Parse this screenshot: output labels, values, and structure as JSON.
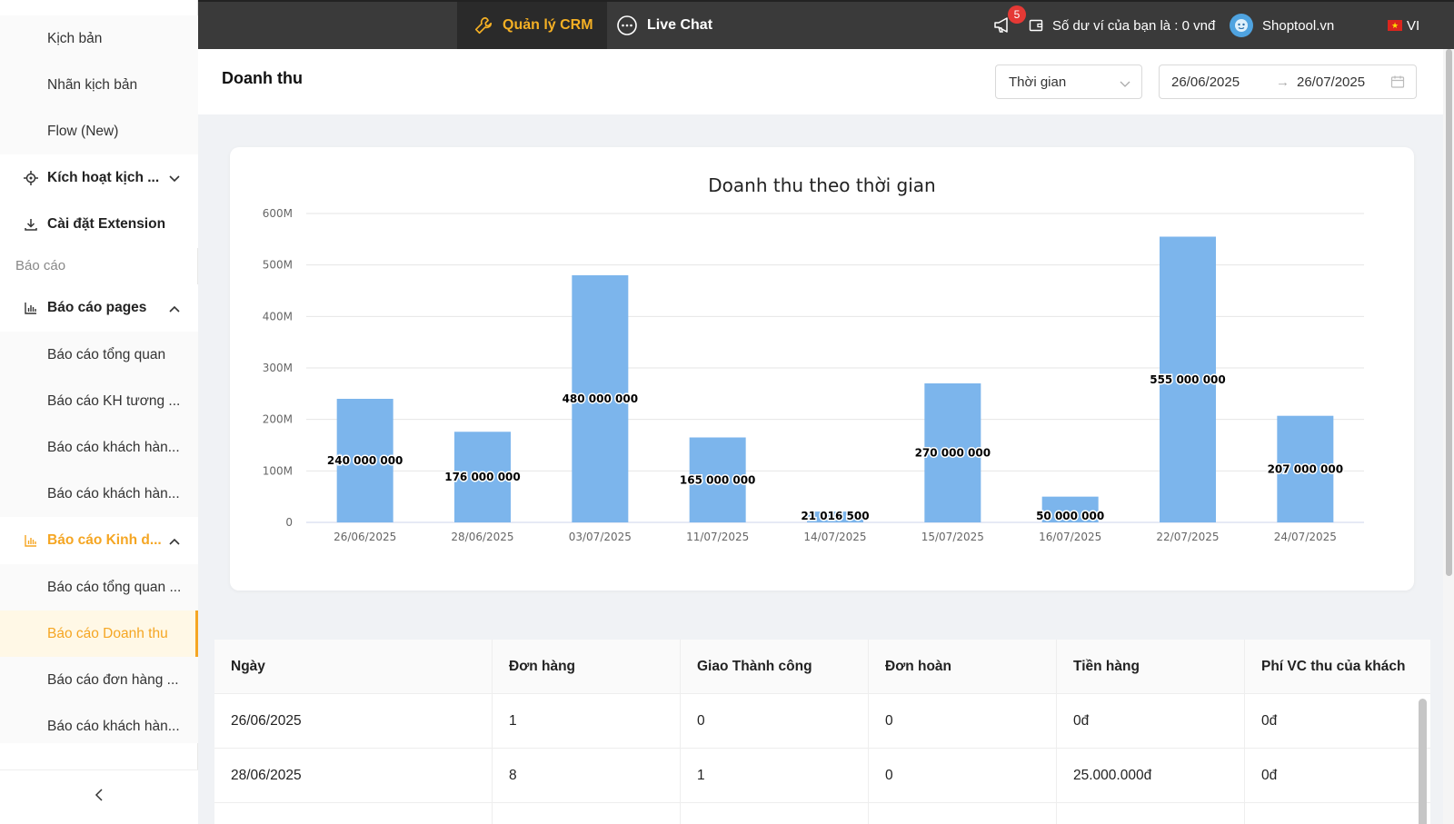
{
  "sidebar": {
    "items": [
      {
        "label": "Kịch bản"
      },
      {
        "label": "Nhãn kịch bản"
      },
      {
        "label": "Flow (New)"
      },
      {
        "label": "Kích hoạt kịch ..."
      },
      {
        "label": "Cài đặt Extension"
      },
      {
        "label": "Báo cáo pages"
      },
      {
        "label": "Báo cáo tổng quan"
      },
      {
        "label": "Báo cáo KH tương ..."
      },
      {
        "label": "Báo cáo khách hàn..."
      },
      {
        "label": "Báo cáo khách hàn..."
      },
      {
        "label": "Báo cáo Kinh d..."
      },
      {
        "label": "Báo cáo tổng quan ..."
      },
      {
        "label": "Báo cáo Doanh thu"
      },
      {
        "label": "Báo cáo đơn hàng ..."
      },
      {
        "label": "Báo cáo khách hàn..."
      }
    ],
    "group_label": "Báo cáo"
  },
  "topbar": {
    "crm_label": "Quản lý CRM",
    "chat_label": "Live Chat",
    "notification_count": "5",
    "wallet_text": "Số dư ví của bạn là :  0 vnđ",
    "user_name": "Shoptool.vn",
    "language": "VI"
  },
  "header": {
    "title": "Doanh thu",
    "time_select": "Thời gian",
    "date_from": "26/06/2025",
    "date_to": "26/07/2025"
  },
  "chart_data": {
    "type": "bar",
    "title": "Doanh thu theo thời gian",
    "categories": [
      "26/06/2025",
      "28/06/2025",
      "03/07/2025",
      "11/07/2025",
      "14/07/2025",
      "15/07/2025",
      "16/07/2025",
      "22/07/2025",
      "24/07/2025"
    ],
    "values": [
      240000000,
      176000000,
      480000000,
      165000000,
      21016500,
      270000000,
      50000000,
      555000000,
      207000000
    ],
    "value_labels": [
      "240 000 000",
      "176 000 000",
      "480 000 000",
      "165 000 000",
      "21 016 500",
      "270 000 000",
      "50 000 000",
      "555 000 000",
      "207 000 000"
    ],
    "y_ticks": [
      "0",
      "100M",
      "200M",
      "300M",
      "400M",
      "500M",
      "600M"
    ],
    "ylim": [
      0,
      600000000
    ],
    "bar_color": "#7cb5ec",
    "grid": true
  },
  "table": {
    "headers": [
      "Ngày",
      "Đơn hàng",
      "Giao Thành công",
      "Đơn hoàn",
      "Tiền hàng",
      "Phí VC thu của khách"
    ],
    "rows": [
      [
        "26/06/2025",
        "1",
        "0",
        "0",
        "0đ",
        "0đ"
      ],
      [
        "28/06/2025",
        "8",
        "1",
        "0",
        "25.000.000đ",
        "0đ"
      ]
    ]
  },
  "colors": {
    "accent": "#f5a623",
    "topbar": "#3a3a3a",
    "badge": "#e53935"
  }
}
